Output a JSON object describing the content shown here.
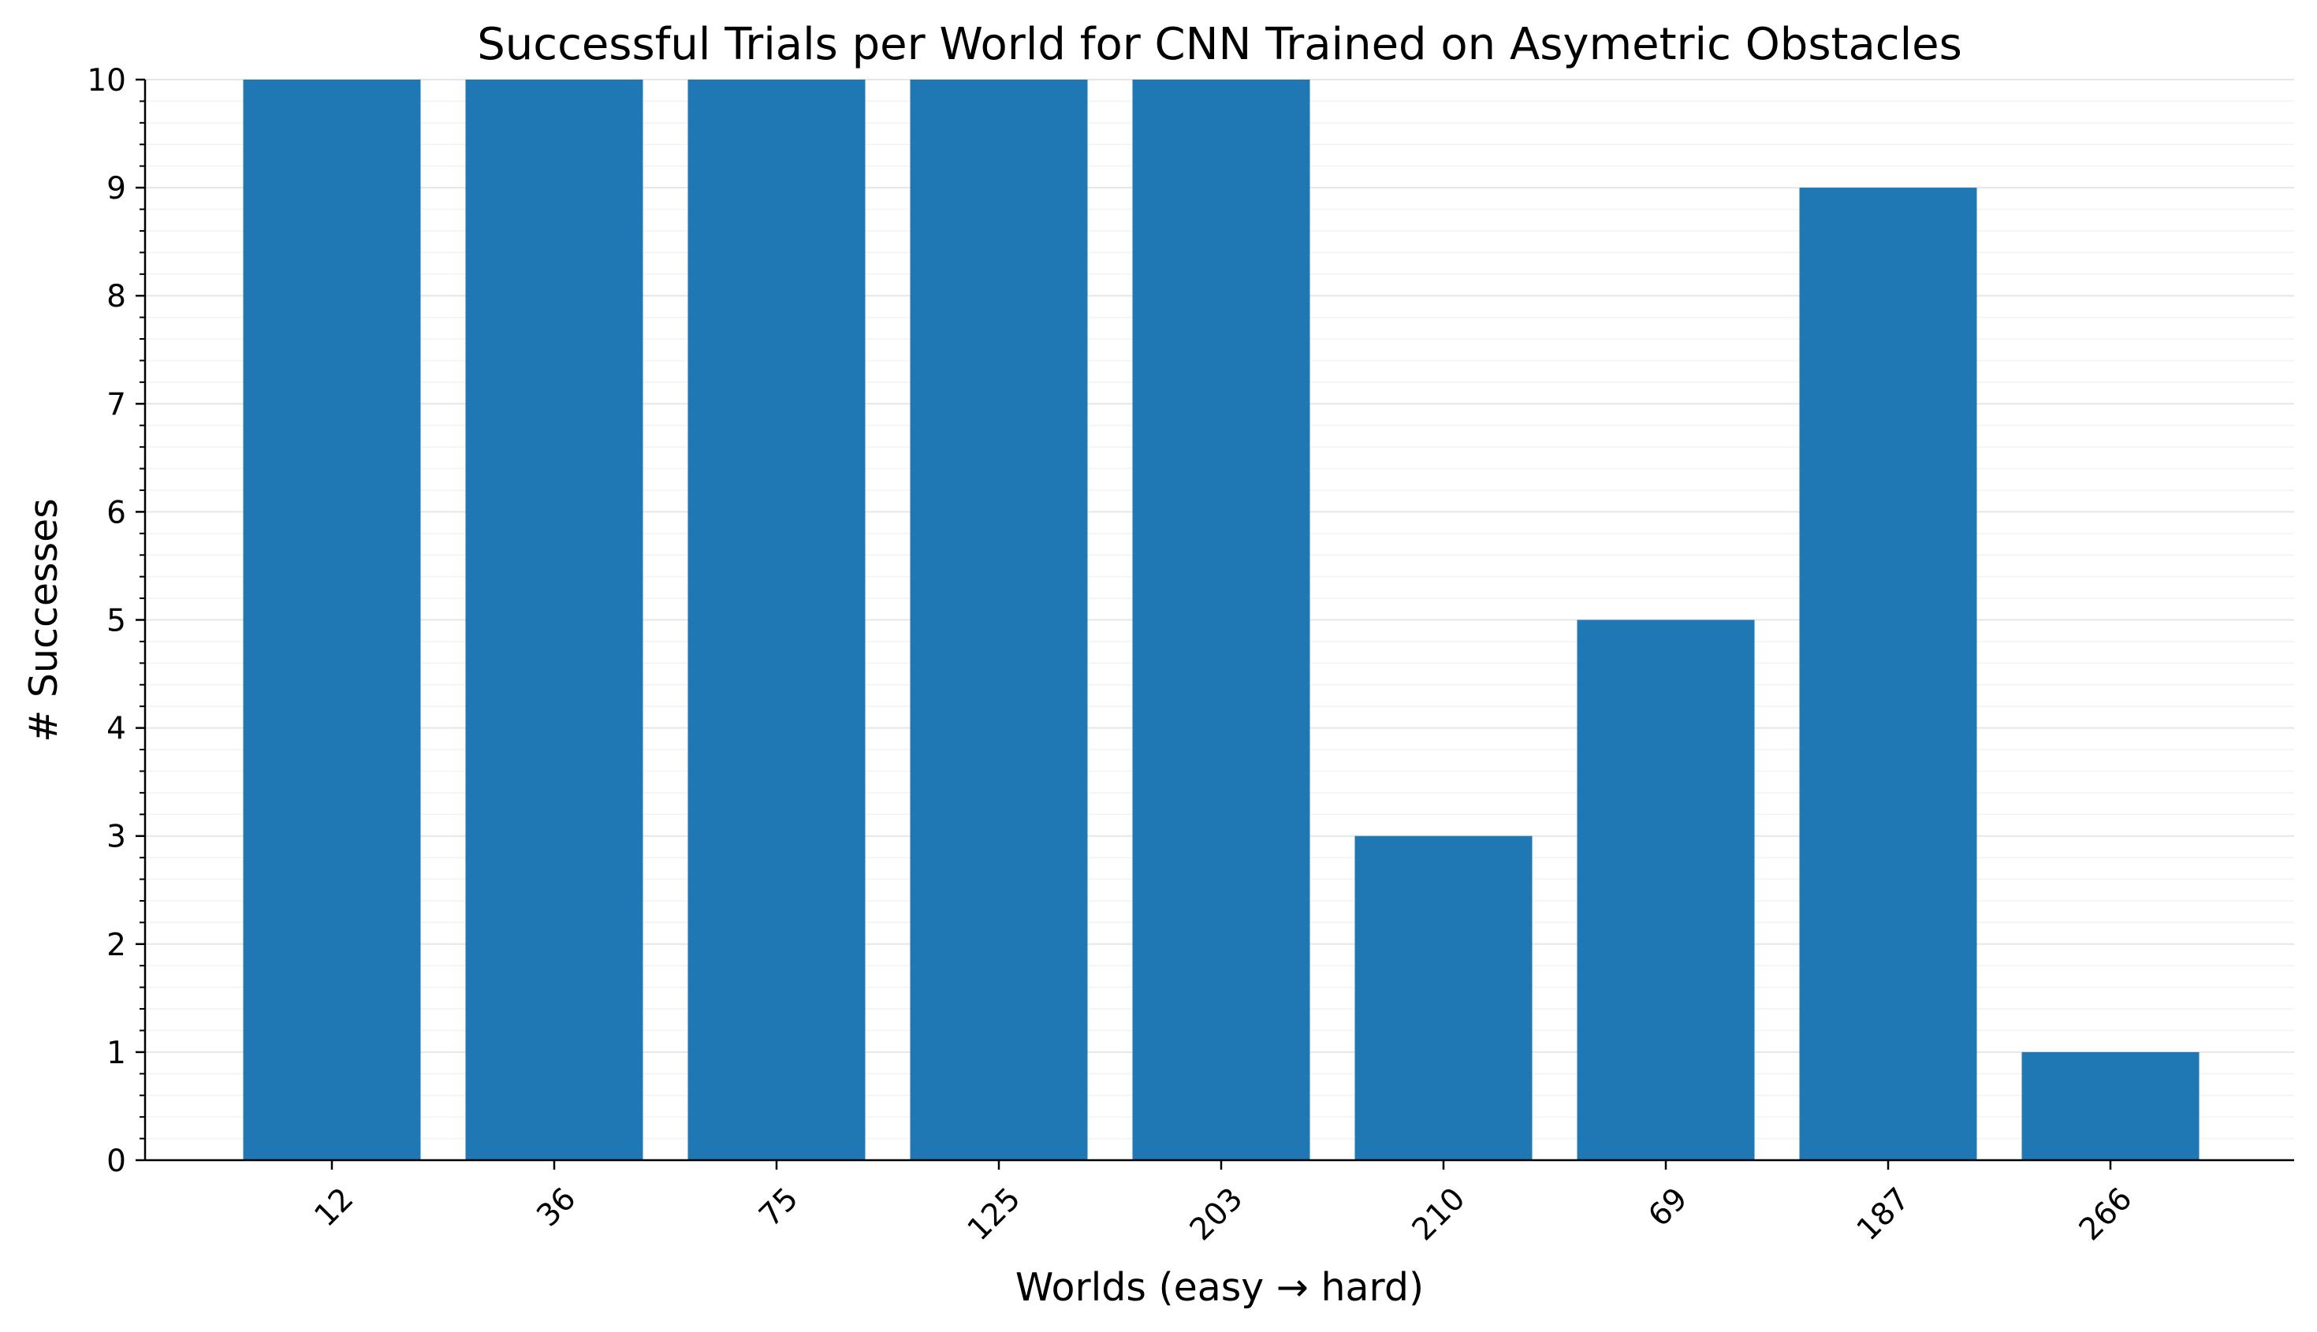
{
  "chart_data": {
    "type": "bar",
    "title": "Successful Trials per World for CNN Trained on Asymetric Obstacles",
    "xlabel": "Worlds (easy → hard)",
    "ylabel": "# Successes",
    "categories": [
      "12",
      "36",
      "75",
      "125",
      "203",
      "210",
      "69",
      "187",
      "266"
    ],
    "values": [
      10,
      10,
      10,
      10,
      10,
      3,
      5,
      9,
      1
    ],
    "ylim": [
      0,
      10
    ],
    "yticks": [
      0,
      1,
      2,
      3,
      4,
      5,
      6,
      7,
      8,
      9,
      10
    ],
    "y_minor_step": 0.2,
    "grid": true,
    "legend": "none",
    "bar_color": "#1f77b4",
    "grid_major_color": "#e6e6e6",
    "grid_minor_color": "#f2f2f2",
    "axis_color": "#000000"
  }
}
